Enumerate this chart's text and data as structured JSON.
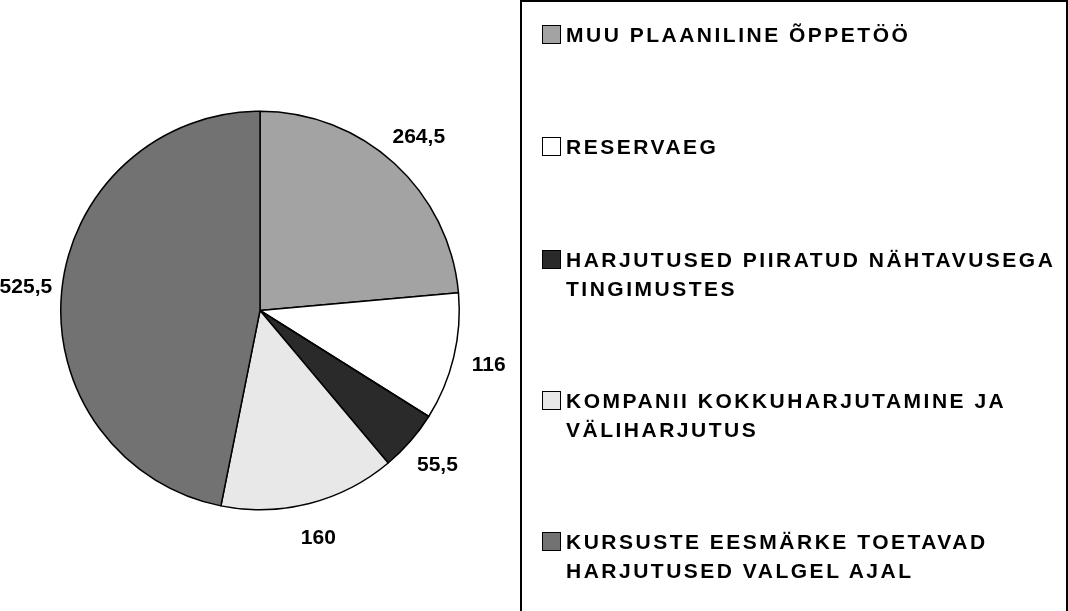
{
  "chart_data": {
    "type": "pie",
    "categories": [
      "MUU PLAANILINE ÕPPETÖÖ",
      "RESERVAEG",
      "HARJUTUSED PIIRATUD NÄHTAVUSEGA TINGIMUSTES",
      "KOMPANII KOKKUHARJUTAMINE JA VÄLIHARJUTUS",
      "KURSUSTE EESMÄRKE TOETAVAD HARJUTUSED VALGEL AJAL"
    ],
    "values": [
      264.5,
      116,
      55.5,
      160,
      525.5
    ],
    "value_labels": [
      "264,5",
      "116",
      "55,5",
      "160",
      "525,5"
    ],
    "colors": [
      "#a3a3a3",
      "#ffffff",
      "#2a2a2a",
      "#e8e8e8",
      "#727272"
    ],
    "legend": "right"
  }
}
